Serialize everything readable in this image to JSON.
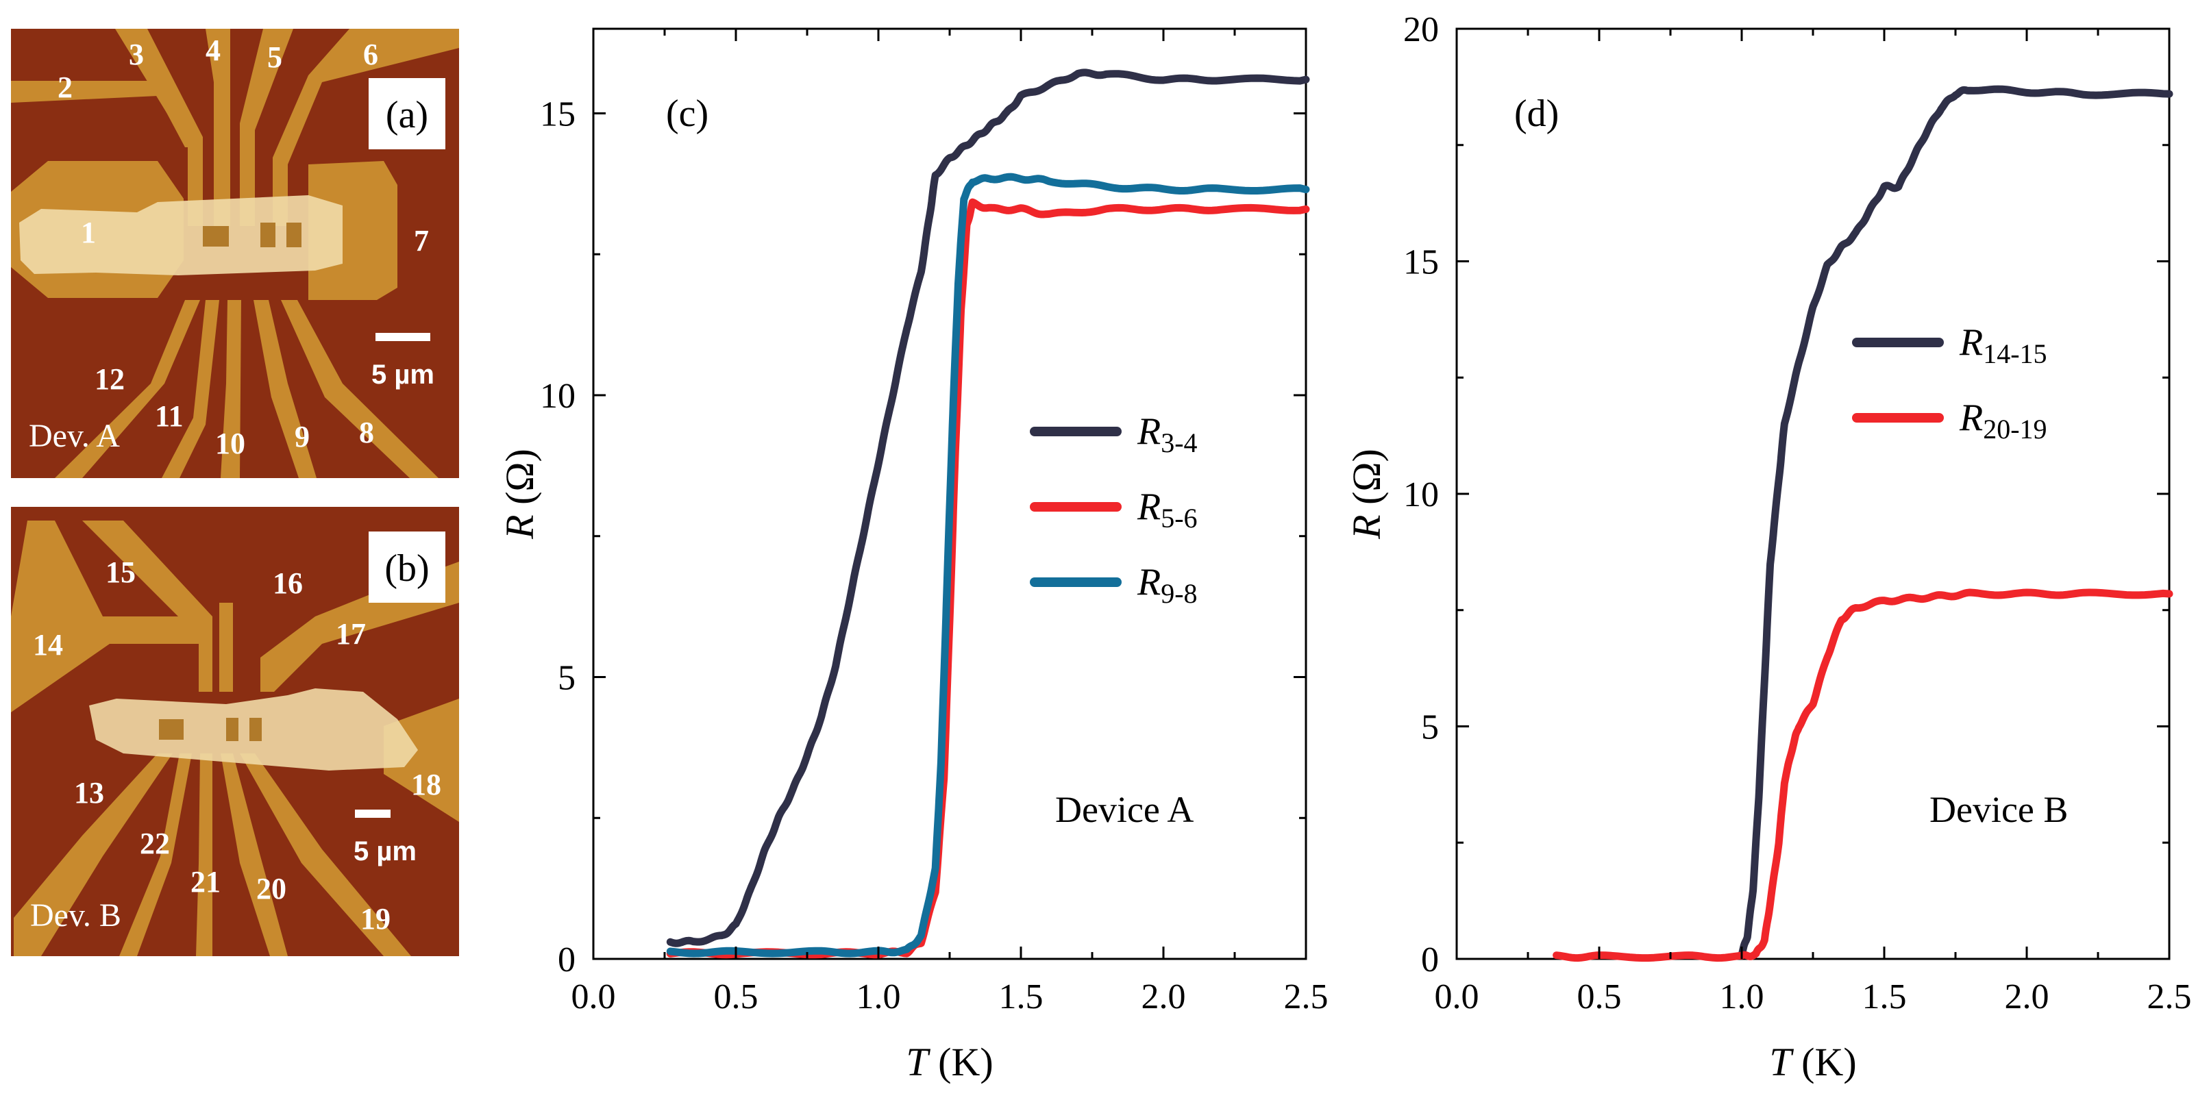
{
  "colors": {
    "dark_navy": "#2f3048",
    "red": "#f0262a",
    "teal": "#136f9a",
    "substrate": "#8a2e12",
    "lead": "#c88a2e",
    "flake": "#f0d9a6"
  },
  "panel_a": {
    "label": "(a)",
    "device_caption": "Dev. A",
    "scale_label": "5 µm",
    "electrodes": [
      "1",
      "2",
      "3",
      "4",
      "5",
      "6",
      "7",
      "8",
      "9",
      "10",
      "11",
      "12"
    ]
  },
  "panel_b": {
    "label": "(b)",
    "device_caption": "Dev. B",
    "scale_label": "5 µm",
    "electrodes": [
      "13",
      "14",
      "15",
      "16",
      "17",
      "18",
      "19",
      "20",
      "21",
      "22"
    ]
  },
  "chart_data": [
    {
      "panel": "(c)",
      "type": "line",
      "annotation": "Device A",
      "xlabel_italic": "T",
      "xlabel_unit": " (K)",
      "ylabel_italic": "R",
      "ylabel_unit": " (Ω)",
      "xlim": [
        0,
        2.5
      ],
      "ylim": [
        0,
        16.5
      ],
      "xticks": [
        0.0,
        0.5,
        1.0,
        1.5,
        2.0,
        2.5
      ],
      "xtick_labels": [
        "0.0",
        "0.5",
        "1.0",
        "1.5",
        "2.0",
        "2.5"
      ],
      "yticks": [
        0,
        5,
        10,
        15
      ],
      "ytick_labels": [
        "0",
        "5",
        "10",
        "15"
      ],
      "legend": "center-right",
      "series": [
        {
          "name": "R3-4",
          "sym": "R",
          "sub": "3-4",
          "color": "#2f3048",
          "x": [
            0.27,
            0.35,
            0.45,
            0.5,
            0.55,
            0.6,
            0.65,
            0.7,
            0.75,
            0.8,
            0.85,
            0.9,
            0.95,
            1.0,
            1.05,
            1.1,
            1.15,
            1.18,
            1.2,
            1.25,
            1.3,
            1.35,
            1.4,
            1.45,
            1.5,
            1.6,
            1.7,
            1.8,
            2.0,
            2.2,
            2.5
          ],
          "y": [
            0.3,
            0.3,
            0.4,
            0.6,
            1.2,
            1.9,
            2.5,
            3.0,
            3.6,
            4.3,
            5.2,
            6.4,
            7.6,
            8.8,
            10.0,
            11.2,
            12.2,
            13.2,
            13.9,
            14.2,
            14.4,
            14.6,
            14.8,
            15.0,
            15.3,
            15.5,
            15.7,
            15.7,
            15.6,
            15.6,
            15.6
          ]
        },
        {
          "name": "R5-6",
          "sym": "R",
          "sub": "5-6",
          "color": "#f0262a",
          "x": [
            0.27,
            0.5,
            0.8,
            1.0,
            1.1,
            1.15,
            1.2,
            1.23,
            1.25,
            1.27,
            1.29,
            1.31,
            1.33,
            1.4,
            1.5,
            1.6,
            1.8,
            2.0,
            2.2,
            2.5
          ],
          "y": [
            0.1,
            0.1,
            0.1,
            0.1,
            0.12,
            0.3,
            1.2,
            3.2,
            6.0,
            9.0,
            11.5,
            13.0,
            13.4,
            13.3,
            13.3,
            13.2,
            13.3,
            13.3,
            13.3,
            13.3
          ]
        },
        {
          "name": "R9-8",
          "sym": "R",
          "sub": "9-8",
          "color": "#136f9a",
          "x": [
            0.27,
            0.5,
            0.8,
            1.0,
            1.1,
            1.15,
            1.2,
            1.22,
            1.24,
            1.26,
            1.28,
            1.3,
            1.33,
            1.4,
            1.5,
            1.6,
            1.8,
            2.0,
            2.2,
            2.5
          ],
          "y": [
            0.12,
            0.12,
            0.12,
            0.12,
            0.15,
            0.4,
            1.6,
            3.5,
            6.5,
            9.5,
            12.0,
            13.5,
            13.8,
            13.85,
            13.85,
            13.8,
            13.7,
            13.65,
            13.65,
            13.65
          ]
        }
      ]
    },
    {
      "panel": "(d)",
      "type": "line",
      "annotation": "Device B",
      "xlabel_italic": "T",
      "xlabel_unit": " (K)",
      "ylabel_italic": "R",
      "ylabel_unit": " (Ω)",
      "xlim": [
        0,
        2.5
      ],
      "ylim": [
        0,
        20
      ],
      "xticks": [
        0.0,
        0.5,
        1.0,
        1.5,
        2.0,
        2.5
      ],
      "xtick_labels": [
        "0.0",
        "0.5",
        "1.0",
        "1.5",
        "2.0",
        "2.5"
      ],
      "yticks": [
        0,
        5,
        10,
        15,
        20
      ],
      "ytick_labels": [
        "0",
        "5",
        "10",
        "15",
        "20"
      ],
      "legend": "center-right",
      "series": [
        {
          "name": "R14-15",
          "sym": "R",
          "sub": "14-15",
          "color": "#2f3048",
          "x": [
            1.0,
            1.02,
            1.04,
            1.06,
            1.08,
            1.1,
            1.13,
            1.15,
            1.2,
            1.25,
            1.3,
            1.35,
            1.4,
            1.45,
            1.5,
            1.55,
            1.6,
            1.65,
            1.7,
            1.75,
            1.8,
            2.0,
            2.2,
            2.5
          ],
          "y": [
            0.1,
            0.5,
            1.5,
            3.5,
            6.0,
            8.5,
            10.3,
            11.5,
            12.8,
            14.0,
            14.9,
            15.3,
            15.6,
            16.1,
            16.6,
            16.6,
            17.2,
            17.8,
            18.3,
            18.6,
            18.7,
            18.65,
            18.6,
            18.6
          ]
        },
        {
          "name": "R20-19",
          "sym": "R",
          "sub": "20-19",
          "color": "#f0262a",
          "x": [
            0.35,
            0.5,
            0.8,
            1.0,
            1.05,
            1.08,
            1.1,
            1.13,
            1.15,
            1.18,
            1.2,
            1.25,
            1.3,
            1.35,
            1.4,
            1.5,
            1.6,
            1.7,
            1.8,
            2.0,
            2.2,
            2.5
          ],
          "y": [
            0.05,
            0.05,
            0.05,
            0.05,
            0.1,
            0.4,
            1.2,
            2.5,
            3.8,
            4.6,
            5.0,
            5.5,
            6.5,
            7.3,
            7.55,
            7.7,
            7.75,
            7.8,
            7.85,
            7.85,
            7.85,
            7.85
          ]
        }
      ]
    }
  ]
}
